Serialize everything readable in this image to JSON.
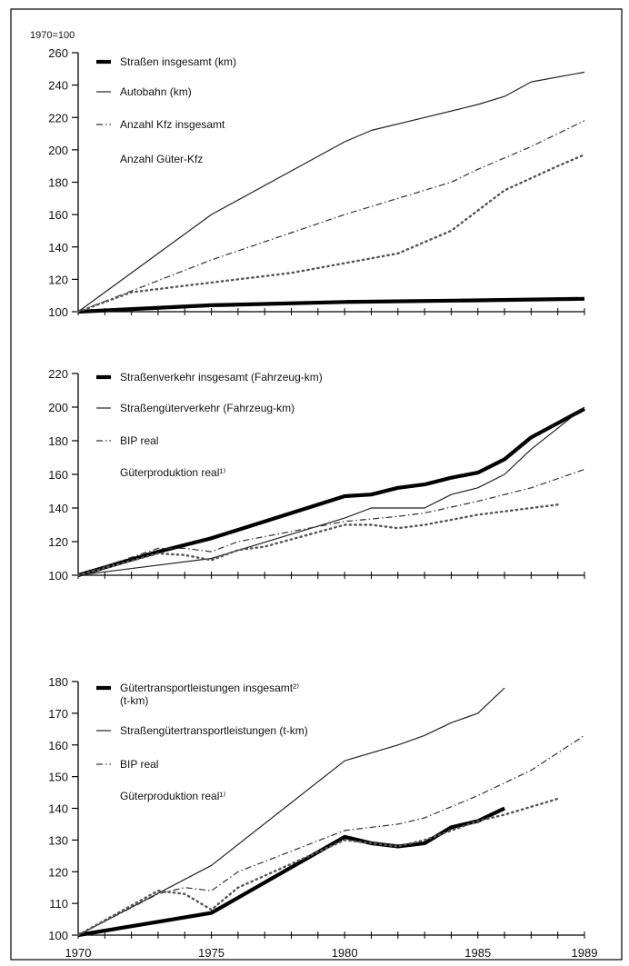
{
  "chart_data": [
    {
      "type": "line",
      "unit_label": "1970=100",
      "x_range": [
        1970,
        1989
      ],
      "ylim": [
        100,
        260
      ],
      "y_ticks": [
        100,
        120,
        140,
        160,
        180,
        200,
        220,
        240,
        260
      ],
      "x_tick_labels": [],
      "series": [
        {
          "name": "Straßen insgesamt (km)",
          "style": "thick",
          "color": "#000000",
          "x": [
            1970,
            1975,
            1980,
            1985,
            1989
          ],
          "y": [
            100,
            104,
            106,
            107,
            108
          ]
        },
        {
          "name": "Autobahn (km)",
          "style": "thin",
          "color": "#222222",
          "x": [
            1970,
            1975,
            1980,
            1981,
            1983,
            1985,
            1986,
            1987,
            1989
          ],
          "y": [
            100,
            160,
            205,
            212,
            220,
            228,
            233,
            242,
            248
          ]
        },
        {
          "name": "Anzahl Kfz insgesamt",
          "style": "dashdot",
          "color": "#333333",
          "x": [
            1970,
            1975,
            1980,
            1983,
            1984,
            1985,
            1987,
            1989
          ],
          "y": [
            100,
            132,
            160,
            175,
            180,
            188,
            202,
            218
          ]
        },
        {
          "name": "Anzahl Güter-Kfz",
          "style": "dotted",
          "color": "#555555",
          "x": [
            1970,
            1972,
            1975,
            1978,
            1980,
            1982,
            1984,
            1986,
            1988,
            1989
          ],
          "y": [
            100,
            112,
            118,
            124,
            130,
            136,
            150,
            175,
            190,
            197
          ]
        }
      ]
    },
    {
      "type": "line",
      "unit_label": "",
      "x_range": [
        1970,
        1989
      ],
      "ylim": [
        100,
        220
      ],
      "y_ticks": [
        100,
        120,
        140,
        160,
        180,
        200,
        220
      ],
      "x_tick_labels": [],
      "series": [
        {
          "name": "Straßenverkehr insgesamt (Fahrzeug-km)",
          "style": "thick",
          "color": "#000000",
          "x": [
            1970,
            1973,
            1975,
            1980,
            1981,
            1982,
            1983,
            1984,
            1985,
            1986,
            1987,
            1989
          ],
          "y": [
            100,
            114,
            122,
            147,
            148,
            152,
            154,
            158,
            161,
            169,
            182,
            199
          ]
        },
        {
          "name": "Straßengüterverkehr (Fahrzeug-km)",
          "style": "thin",
          "color": "#222222",
          "x": [
            1970,
            1975,
            1980,
            1981,
            1983,
            1984,
            1985,
            1986,
            1987,
            1989
          ],
          "y": [
            100,
            110,
            134,
            140,
            140,
            148,
            152,
            160,
            175,
            200
          ]
        },
        {
          "name": "BIP real",
          "style": "dashdot",
          "color": "#333333",
          "x": [
            1970,
            1973,
            1974,
            1975,
            1976,
            1980,
            1982,
            1983,
            1985,
            1987,
            1989
          ],
          "y": [
            100,
            116,
            116,
            114,
            120,
            132,
            135,
            137,
            144,
            152,
            163
          ]
        },
        {
          "name": "Güterproduktion real¹⁾",
          "style": "dotted",
          "color": "#555555",
          "x": [
            1970,
            1973,
            1974,
            1975,
            1976,
            1977,
            1980,
            1981,
            1982,
            1983,
            1984,
            1985,
            1986,
            1987,
            1988
          ],
          "y": [
            100,
            113,
            112,
            109,
            115,
            117,
            130,
            130,
            128,
            130,
            133,
            136,
            138,
            140,
            142
          ]
        }
      ]
    },
    {
      "type": "line",
      "unit_label": "",
      "x_range": [
        1970,
        1989
      ],
      "ylim": [
        100,
        180
      ],
      "y_ticks": [
        100,
        110,
        120,
        130,
        140,
        150,
        160,
        170,
        180
      ],
      "x_tick_labels": [
        "1970",
        "1975",
        "1980",
        "1985",
        "1989"
      ],
      "series": [
        {
          "name": "Gütertransportleistungen insgesamt²⁾ (t-km)",
          "style": "thick",
          "color": "#000000",
          "x": [
            1970,
            1975,
            1980,
            1981,
            1982,
            1983,
            1984,
            1985,
            1986
          ],
          "y": [
            100,
            107,
            131,
            129,
            128,
            129,
            134,
            136,
            140
          ]
        },
        {
          "name": "Straßengütertransportleistungen (t-km)",
          "style": "thin",
          "color": "#222222",
          "x": [
            1970,
            1975,
            1980,
            1982,
            1983,
            1984,
            1985,
            1986
          ],
          "y": [
            100,
            122,
            155,
            160,
            163,
            167,
            170,
            178
          ]
        },
        {
          "name": "BIP real",
          "style": "dashdot",
          "color": "#333333",
          "x": [
            1970,
            1973,
            1974,
            1975,
            1976,
            1980,
            1982,
            1983,
            1985,
            1987,
            1989
          ],
          "y": [
            100,
            113,
            115,
            114,
            120,
            133,
            135,
            137,
            144,
            152,
            163
          ]
        },
        {
          "name": "Güterproduktion real¹⁾",
          "style": "dotted",
          "color": "#555555",
          "x": [
            1970,
            1973,
            1974,
            1975,
            1976,
            1980,
            1981,
            1982,
            1983,
            1984,
            1985,
            1986,
            1988
          ],
          "y": [
            100,
            114,
            113,
            108,
            115,
            130,
            129,
            128,
            130,
            133,
            136,
            138,
            143
          ]
        }
      ]
    }
  ]
}
